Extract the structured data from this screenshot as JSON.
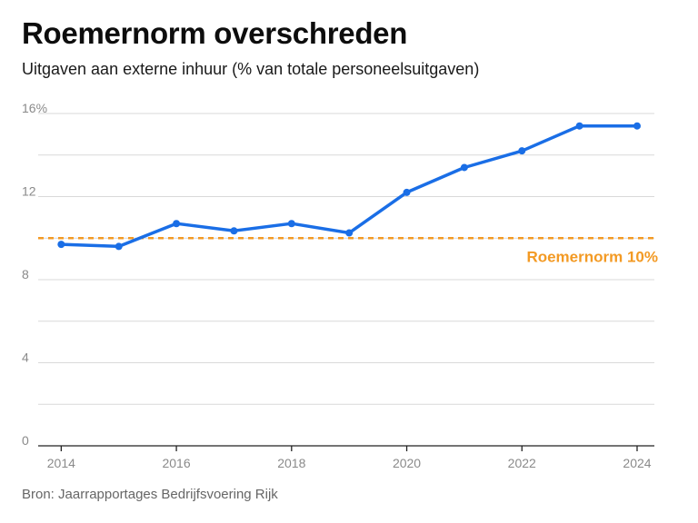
{
  "header": {
    "title": "Roemernorm overschreden",
    "subtitle": "Uitgaven aan externe inhuur (% van totale personeelsuitgaven)"
  },
  "footer": {
    "source": "Bron: Jaarrapportages Bedrijfsvoering Rijk"
  },
  "colors": {
    "line": "#1a6ee6",
    "reference": "#f39a24",
    "grid": "#d9d9d9",
    "axis": "#222222"
  },
  "chart_data": {
    "type": "line",
    "title": "Roemernorm overschreden",
    "subtitle": "Uitgaven aan externe inhuur (% van totale personeelsuitgaven)",
    "xlabel": "",
    "ylabel": "",
    "x": [
      2014,
      2015,
      2016,
      2017,
      2018,
      2019,
      2020,
      2021,
      2022,
      2023,
      2024
    ],
    "series": [
      {
        "values": [
          9.7,
          9.6,
          10.7,
          10.35,
          10.7,
          10.25,
          12.2,
          13.4,
          14.2,
          15.4,
          15.4
        ]
      }
    ],
    "xlim": [
      2013.6,
      2024.3
    ],
    "ylim": [
      0,
      16
    ],
    "x_ticks": [
      2014,
      2016,
      2018,
      2020,
      2022,
      2024
    ],
    "x_tick_labels": [
      "2014",
      "2016",
      "2018",
      "2020",
      "2022",
      "2024"
    ],
    "y_ticks": [
      0,
      4,
      8,
      12,
      16
    ],
    "y_tick_labels": [
      "0",
      "4",
      "8",
      "12",
      "16%"
    ],
    "grid": true,
    "minor_grid_step": 2,
    "reference_line": {
      "value": 10,
      "label": "Roemernorm 10%"
    }
  }
}
